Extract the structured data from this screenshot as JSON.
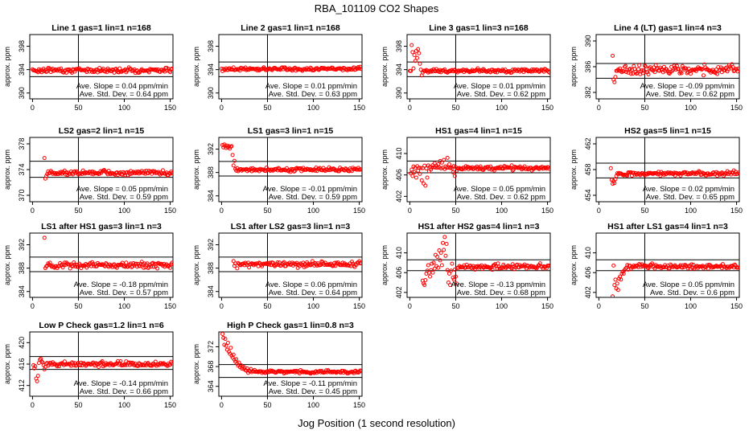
{
  "figure": {
    "title": "RBA_101109  CO2 Shapes",
    "xlabel": "Jog Position (1 second resolution)"
  },
  "labels": {
    "slope_prefix": "Ave. Slope = ",
    "slope_unit": " ppm/min",
    "sd_prefix": "Ave. Std. Dev. = ",
    "sd_unit": " ppm"
  },
  "colors": {
    "points": "#ff0000",
    "axes": "#000000"
  },
  "chart_data": [
    {
      "type": "scatter",
      "title": "Line 1 gas=1 lin=1 n=168",
      "ylabel": "approx. ppm",
      "xlim": [
        0,
        150
      ],
      "ylim": [
        389,
        400
      ],
      "xticks": [
        0,
        50,
        100,
        150
      ],
      "yticks": [
        390,
        394,
        398
      ],
      "hlines": [
        392.8,
        395.3
      ],
      "vline": 50,
      "slope": "0.04",
      "sd": "0.64",
      "points": {
        "start": 0,
        "end": 152,
        "step": 1,
        "base": 393.9,
        "noise": 0.25,
        "transient": []
      }
    },
    {
      "type": "scatter",
      "title": "Line 2 gas=1 lin=1 n=168",
      "ylabel": "approx. ppm",
      "xlim": [
        0,
        150
      ],
      "ylim": [
        389,
        400
      ],
      "xticks": [
        0,
        50,
        100,
        150
      ],
      "yticks": [
        390,
        394,
        398
      ],
      "hlines": [
        392.8,
        395.3
      ],
      "vline": 50,
      "slope": "0.01",
      "sd": "0.63",
      "points": {
        "start": 0,
        "end": 152,
        "step": 1,
        "base": 394.1,
        "noise": 0.2,
        "transient": []
      }
    },
    {
      "type": "scatter",
      "title": "Line 3 gas=1 lin=3 n=168",
      "ylabel": "approx. ppm",
      "xlim": [
        0,
        150
      ],
      "ylim": [
        389,
        400
      ],
      "xticks": [
        0,
        50,
        100,
        150
      ],
      "yticks": [
        390,
        394,
        398
      ],
      "hlines": [
        392.8,
        395.3
      ],
      "vline": 50,
      "slope": "0.01",
      "sd": "0.62",
      "points": {
        "start": 0,
        "end": 152,
        "step": 1,
        "base": 393.8,
        "noise": 0.2,
        "transient": [
          [
            2,
            398.2
          ],
          [
            3,
            397
          ],
          [
            4,
            394.2
          ],
          [
            5,
            396.5
          ],
          [
            6,
            395.5
          ],
          [
            7,
            397.2
          ],
          [
            8,
            396
          ],
          [
            9,
            397.5
          ],
          [
            10,
            396.8
          ],
          [
            11,
            395
          ],
          [
            12,
            394
          ],
          [
            13,
            393
          ],
          [
            14,
            393.5
          ],
          [
            15,
            393.8
          ]
        ]
      }
    },
    {
      "type": "scatter",
      "title": "Line 4 (LT) gas=1 lin=4 n=3",
      "ylabel": "approx. ppm",
      "xlim": [
        0,
        150
      ],
      "ylim": [
        381,
        391
      ],
      "xticks": [
        0,
        50,
        100,
        150
      ],
      "yticks": [
        382,
        386,
        390
      ],
      "hlines": [
        384.2,
        386.5
      ],
      "vline": 50,
      "slope": "-0.09",
      "sd": "0.62",
      "points": {
        "start": 15,
        "end": 152,
        "step": 1,
        "base": 385.5,
        "noise": 0.45,
        "transient": [
          [
            15,
            387.7
          ],
          [
            16,
            384
          ],
          [
            17,
            383.6
          ],
          [
            18,
            384.4
          ]
        ]
      }
    },
    {
      "type": "scatter",
      "title": "LS2 gas=2 lin=1 n=15",
      "ylabel": "approx. ppm",
      "xlim": [
        0,
        150
      ],
      "ylim": [
        369,
        379
      ],
      "xticks": [
        0,
        50,
        100,
        150
      ],
      "yticks": [
        370,
        374,
        378
      ],
      "hlines": [
        372.8,
        375.3
      ],
      "vline": 50,
      "slope": "0.05",
      "sd": "0.59",
      "points": {
        "start": 13,
        "end": 152,
        "step": 1,
        "base": 373.5,
        "noise": 0.22,
        "transient": [
          [
            13,
            375.8
          ],
          [
            14,
            372.6
          ],
          [
            15,
            373
          ],
          [
            16,
            373.3
          ]
        ]
      }
    },
    {
      "type": "scatter",
      "title": "LS1 gas=3 lin=1 n=15",
      "ylabel": "approx. ppm",
      "xlim": [
        0,
        150
      ],
      "ylim": [
        383,
        394
      ],
      "xticks": [
        0,
        50,
        100,
        150
      ],
      "yticks": [
        384,
        388,
        392
      ],
      "hlines": [
        387.4,
        389.9
      ],
      "vline": 50,
      "slope": "-0.01",
      "sd": "0.59",
      "points": {
        "start": 1,
        "end": 152,
        "step": 1,
        "base": 388.5,
        "noise": 0.2,
        "transient": [
          [
            1,
            392.7
          ],
          [
            2,
            392.3
          ],
          [
            3,
            392.8
          ],
          [
            4,
            392.5
          ],
          [
            5,
            392.2
          ],
          [
            6,
            392.6
          ],
          [
            7,
            392.3
          ],
          [
            8,
            392.5
          ],
          [
            9,
            392.1
          ],
          [
            10,
            392.4
          ],
          [
            11,
            392.5
          ],
          [
            12,
            391
          ],
          [
            13,
            389.2
          ],
          [
            14,
            390
          ],
          [
            15,
            388.6
          ]
        ]
      }
    },
    {
      "type": "scatter",
      "title": "HS1 gas=4 lin=1 n=15",
      "ylabel": "approx. ppm",
      "xlim": [
        0,
        150
      ],
      "ylim": [
        401,
        413
      ],
      "xticks": [
        0,
        50,
        100,
        150
      ],
      "yticks": [
        402,
        406,
        410
      ],
      "hlines": [
        406.4,
        408.6
      ],
      "vline": 50,
      "slope": "0.05",
      "sd": "0.62",
      "points": {
        "start": 1,
        "end": 152,
        "step": 1,
        "base": 407.3,
        "noise": 0.25,
        "transient": [
          [
            1,
            406.3
          ],
          [
            3,
            405.8
          ],
          [
            5,
            406.5
          ],
          [
            7,
            405.5
          ],
          [
            9,
            406.8
          ],
          [
            11,
            406.2
          ],
          [
            13,
            405
          ],
          [
            15,
            404.4
          ],
          [
            17,
            404
          ],
          [
            19,
            405.5
          ],
          [
            21,
            406.7
          ],
          [
            23,
            407
          ],
          [
            25,
            407.8
          ],
          [
            27,
            408.2
          ],
          [
            29,
            407.7
          ],
          [
            31,
            408
          ],
          [
            33,
            408.6
          ],
          [
            35,
            408.3
          ],
          [
            37,
            408.8
          ],
          [
            39,
            407.6
          ],
          [
            41,
            409.2
          ],
          [
            43,
            408
          ],
          [
            45,
            407.4
          ],
          [
            47,
            406.5
          ],
          [
            49,
            405.8
          ],
          [
            51,
            406.8
          ],
          [
            53,
            407.2
          ]
        ]
      }
    },
    {
      "type": "scatter",
      "title": "HS2 gas=5 lin=1 n=15",
      "ylabel": "approx. ppm",
      "xlim": [
        0,
        150
      ],
      "ylim": [
        453,
        463
      ],
      "xticks": [
        0,
        50,
        100,
        150
      ],
      "yticks": [
        454,
        458,
        462
      ],
      "hlines": [
        456.7,
        459
      ],
      "vline": 50,
      "slope": "0.02",
      "sd": "0.65",
      "points": {
        "start": 13,
        "end": 152,
        "step": 1,
        "base": 457.4,
        "noise": 0.22,
        "transient": [
          [
            13,
            458.2
          ],
          [
            14,
            456.4
          ],
          [
            15,
            455.8
          ],
          [
            16,
            456.2
          ],
          [
            17,
            455.9
          ],
          [
            18,
            456.5
          ],
          [
            19,
            457
          ]
        ]
      }
    },
    {
      "type": "scatter",
      "title": "LS1 after HS1 gas=3 lin=1 n=3",
      "ylabel": "approx. ppm",
      "xlim": [
        0,
        150
      ],
      "ylim": [
        383,
        394
      ],
      "xticks": [
        0,
        50,
        100,
        150
      ],
      "yticks": [
        384,
        388,
        392
      ],
      "hlines": [
        387.4,
        389.9
      ],
      "vline": 50,
      "slope": "-0.18",
      "sd": "0.57",
      "points": {
        "start": 13,
        "end": 152,
        "step": 1,
        "base": 388.5,
        "noise": 0.3,
        "transient": [
          [
            13,
            393.2
          ],
          [
            14,
            388
          ],
          [
            15,
            388.3
          ]
        ]
      }
    },
    {
      "type": "scatter",
      "title": "LS1 after LS2 gas=3 lin=1 n=3",
      "ylabel": "approx. ppm",
      "xlim": [
        0,
        150
      ],
      "ylim": [
        383,
        394
      ],
      "xticks": [
        0,
        50,
        100,
        150
      ],
      "yticks": [
        384,
        388,
        392
      ],
      "hlines": [
        387.4,
        389.9
      ],
      "vline": 50,
      "slope": "0.06",
      "sd": "0.64",
      "points": {
        "start": 13,
        "end": 152,
        "step": 1,
        "base": 388.6,
        "noise": 0.3,
        "transient": [
          [
            13,
            389.2
          ],
          [
            14,
            388.4
          ],
          [
            15,
            388.8
          ],
          [
            16,
            382.3
          ]
        ]
      }
    },
    {
      "type": "scatter",
      "title": "HS1 after HS2 gas=4 lin=1 n=3",
      "ylabel": "approx. ppm",
      "xlim": [
        0,
        150
      ],
      "ylim": [
        401,
        414
      ],
      "xticks": [
        0,
        50,
        100,
        150
      ],
      "yticks": [
        402,
        406,
        410
      ],
      "hlines": [
        406.4,
        408.6
      ],
      "vline": 50,
      "slope": "-0.13",
      "sd": "0.68",
      "points": {
        "start": 14,
        "end": 152,
        "step": 1,
        "base": 407.2,
        "noise": 0.3,
        "transient": [
          [
            14,
            404.4
          ],
          [
            15,
            403.8
          ],
          [
            16,
            403.5
          ],
          [
            17,
            404.5
          ],
          [
            18,
            405.8
          ],
          [
            19,
            406.4
          ],
          [
            20,
            407.5
          ],
          [
            21,
            406
          ],
          [
            22,
            405.2
          ],
          [
            23,
            406.5
          ],
          [
            24,
            407.8
          ],
          [
            25,
            406
          ],
          [
            26,
            408
          ],
          [
            27,
            406.8
          ],
          [
            28,
            409.6
          ],
          [
            29,
            407.3
          ],
          [
            30,
            409.2
          ],
          [
            31,
            407
          ],
          [
            32,
            410.5
          ],
          [
            33,
            408.5
          ],
          [
            34,
            410
          ],
          [
            35,
            407.5
          ],
          [
            36,
            412
          ],
          [
            37,
            410.6
          ],
          [
            38,
            413.2
          ],
          [
            39,
            409.4
          ],
          [
            40,
            411.8
          ],
          [
            41,
            406.5
          ],
          [
            42,
            404
          ],
          [
            43,
            405.8
          ],
          [
            44,
            403.5
          ],
          [
            45,
            406.4
          ],
          [
            46,
            407.8
          ],
          [
            47,
            405
          ],
          [
            48,
            404.6
          ],
          [
            49,
            406.6
          ],
          [
            50,
            405.2
          ],
          [
            51,
            403.8
          ]
        ]
      }
    },
    {
      "type": "scatter",
      "title": "HS1 after LS1 gas=4 lin=1 n=3",
      "ylabel": "approx. ppm",
      "xlim": [
        0,
        150
      ],
      "ylim": [
        401,
        414
      ],
      "xticks": [
        0,
        50,
        100,
        150
      ],
      "yticks": [
        402,
        406,
        410
      ],
      "hlines": [
        406.4,
        408.6
      ],
      "vline": 50,
      "slope": "0.05",
      "sd": "0.6",
      "points": {
        "start": 15,
        "end": 152,
        "step": 1,
        "base": 407.3,
        "noise": 0.3,
        "transient": [
          [
            15,
            401.2
          ],
          [
            17,
            403.5
          ],
          [
            18,
            404.6
          ],
          [
            19,
            402.8
          ],
          [
            20,
            403.8
          ],
          [
            21,
            402.5
          ],
          [
            22,
            404.8
          ],
          [
            23,
            405.2
          ],
          [
            24,
            404.6
          ],
          [
            25,
            405.8
          ],
          [
            26,
            406.2
          ],
          [
            27,
            405.8
          ],
          [
            28,
            406.5
          ],
          [
            29,
            406.8
          ],
          [
            30,
            407
          ],
          [
            32,
            406.6
          ],
          [
            34,
            407.4
          ]
        ]
      }
    },
    {
      "type": "scatter",
      "title": "Low P Check gas=1.2 lin=1 n=6",
      "ylabel": "approx. ppm",
      "xlim": [
        0,
        150
      ],
      "ylim": [
        410,
        422
      ],
      "xticks": [
        0,
        50,
        100,
        150
      ],
      "yticks": [
        412,
        416,
        420
      ],
      "hlines": [
        415,
        417.4
      ],
      "vline": 50,
      "slope": "-0.14",
      "sd": "0.66",
      "points": {
        "start": 1,
        "end": 152,
        "step": 1,
        "base": 416,
        "noise": 0.28,
        "transient": [
          [
            1,
            415.8
          ],
          [
            2,
            415.2
          ],
          [
            3,
            415.6
          ],
          [
            4,
            413.3
          ],
          [
            5,
            412.8
          ],
          [
            6,
            413.8
          ],
          [
            7,
            416.2
          ],
          [
            8,
            416.8
          ],
          [
            9,
            417
          ],
          [
            10,
            416.5
          ],
          [
            11,
            416.3
          ],
          [
            12,
            415.8
          ],
          [
            13,
            415
          ],
          [
            14,
            415.5
          ]
        ]
      }
    },
    {
      "type": "scatter",
      "title": "High P Check gas=1 lin=0.8 n=3",
      "ylabel": "approx. ppm",
      "xlim": [
        0,
        150
      ],
      "ylim": [
        362,
        375
      ],
      "xticks": [
        0,
        50,
        100,
        150
      ],
      "yticks": [
        364,
        368,
        372
      ],
      "hlines": [
        365.8,
        368.4
      ],
      "vline": 50,
      "slope": "-0.11",
      "sd": "0.45",
      "points": {
        "start": 1,
        "end": 152,
        "step": 1,
        "base": 366.9,
        "noise": 0.18,
        "transient": [
          [
            1,
            374.6
          ],
          [
            2,
            373.8
          ],
          [
            3,
            372.4
          ],
          [
            4,
            373.6
          ],
          [
            5,
            372.2
          ],
          [
            6,
            371.4
          ],
          [
            7,
            372.8
          ],
          [
            8,
            371
          ],
          [
            9,
            370.6
          ],
          [
            10,
            371.8
          ],
          [
            11,
            370.2
          ],
          [
            12,
            369.8
          ],
          [
            13,
            370.4
          ],
          [
            14,
            369.4
          ],
          [
            15,
            369
          ],
          [
            16,
            369.5
          ],
          [
            17,
            368.6
          ],
          [
            18,
            368.2
          ],
          [
            19,
            368.8
          ],
          [
            20,
            367.9
          ],
          [
            21,
            368.3
          ],
          [
            22,
            367.6
          ],
          [
            23,
            368
          ],
          [
            24,
            367.5
          ],
          [
            25,
            367.8
          ],
          [
            26,
            367.3
          ],
          [
            28,
            367.6
          ],
          [
            30,
            367.2
          ],
          [
            32,
            367.5
          ],
          [
            34,
            367.1
          ],
          [
            36,
            367.3
          ],
          [
            38,
            367
          ]
        ]
      }
    }
  ]
}
